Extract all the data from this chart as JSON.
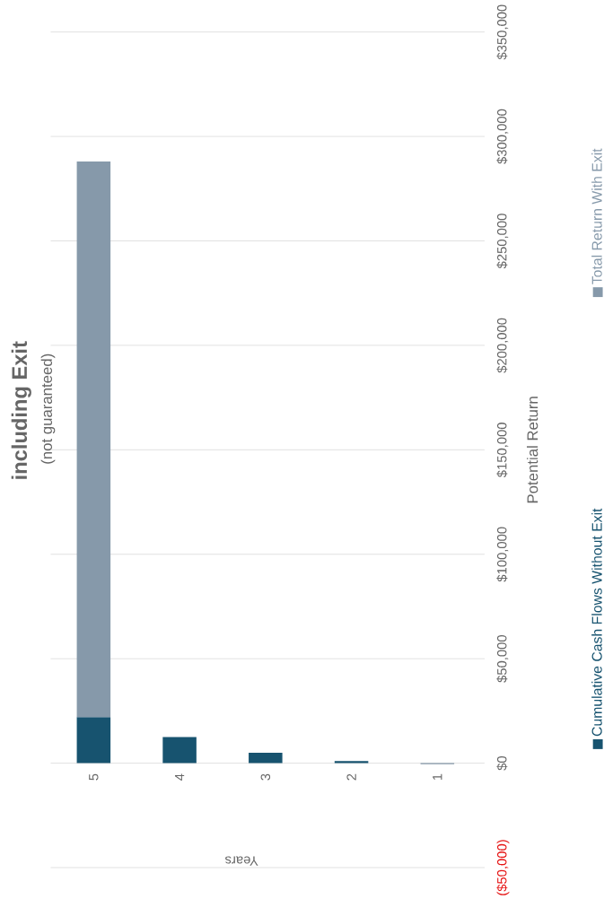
{
  "chart_data": {
    "type": "bar",
    "stacked": true,
    "title": "including Exit",
    "subtitle": "(not guaranteed)",
    "xlabel": "Years",
    "ylabel": "Potential Return",
    "categories": [
      "5",
      "4",
      "3",
      "2",
      "1"
    ],
    "series": [
      {
        "name": "Cumulative Cash Flows Without Exit",
        "color": "#17536f",
        "values": [
          22000,
          12500,
          5000,
          1000,
          null
        ]
      },
      {
        "name": "Total Return With Exit",
        "color": "#8699aa",
        "values": [
          266000,
          null,
          null,
          null,
          -500
        ]
      }
    ],
    "ylim": [
      -50000,
      350000
    ],
    "yticks": [
      {
        "value": -50000,
        "label": "($50,000)"
      },
      {
        "value": 0,
        "label": "$0"
      },
      {
        "value": 50000,
        "label": "$50,000"
      },
      {
        "value": 100000,
        "label": "$100,000"
      },
      {
        "value": 150000,
        "label": "$150,000"
      },
      {
        "value": 200000,
        "label": "$200,000"
      },
      {
        "value": 250000,
        "label": "$250,000"
      },
      {
        "value": 300000,
        "label": "$300,000"
      },
      {
        "value": 350000,
        "label": "$350,000"
      }
    ],
    "grid": "y",
    "legend": "right"
  }
}
